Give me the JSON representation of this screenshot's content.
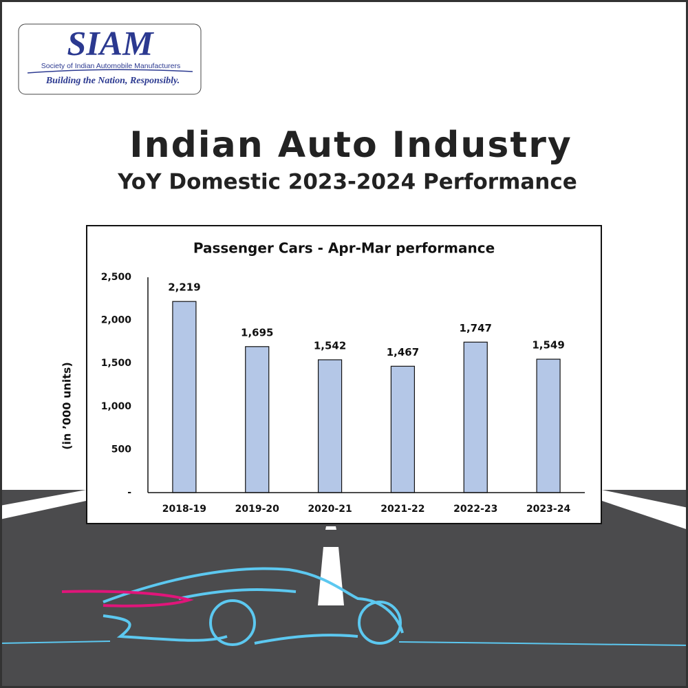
{
  "logo": {
    "name": "SIAM",
    "full_name": "Society of Indian Automobile Manufacturers",
    "tagline": "Building the Nation, Responsibly."
  },
  "header": {
    "title": "Indian Auto Industry",
    "subtitle": "YoY Domestic 2023-2024 Performance"
  },
  "chart_data": {
    "type": "bar",
    "title": "Passenger Cars - Apr-Mar performance",
    "y_label": "(in ’000 units)",
    "categories": [
      "2018-19",
      "2019-20",
      "2020-21",
      "2021-22",
      "2022-23",
      "2023-24"
    ],
    "values": [
      2219,
      1695,
      1542,
      1467,
      1747,
      1549
    ],
    "value_labels": [
      "2,219",
      "1,695",
      "1,542",
      "1,467",
      "1,747",
      "1,549"
    ],
    "color": "#b4c7e7",
    "ylim": [
      0,
      2500
    ],
    "yticks": [
      {
        "value": 0,
        "label": "-"
      },
      500,
      {
        "value": 1000,
        "label": "1,000"
      },
      {
        "value": 1500,
        "label": "1,500"
      },
      {
        "value": 2000,
        "label": "2,000"
      },
      {
        "value": 2500,
        "label": "2,500"
      }
    ]
  }
}
